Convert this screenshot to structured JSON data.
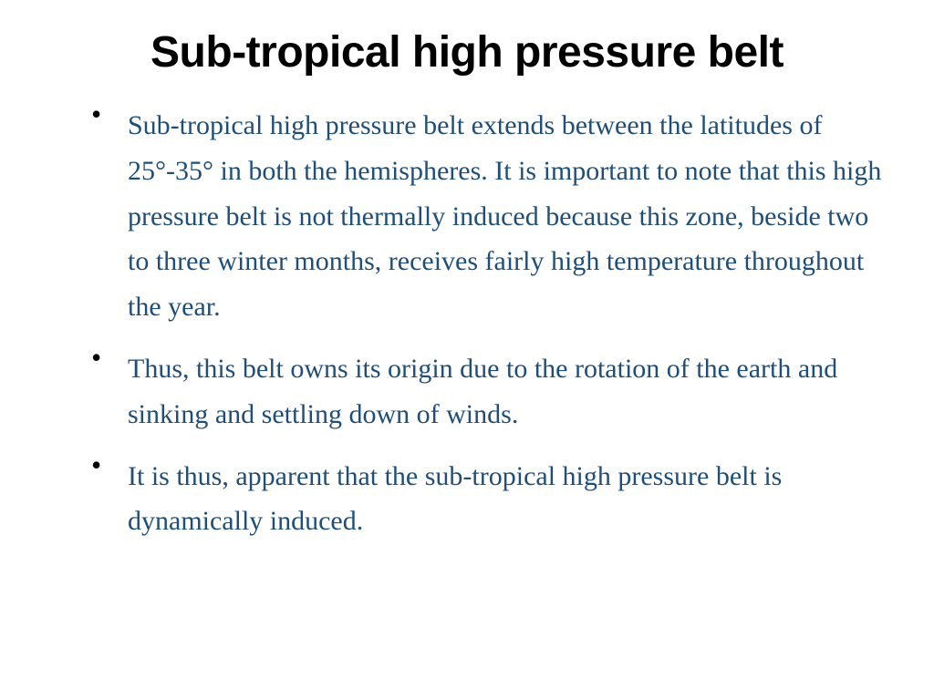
{
  "title": {
    "text": "Sub-tropical high pressure belt",
    "fontsize": 48,
    "color": "#000000"
  },
  "body": {
    "fontsize": 30,
    "line_height": 1.66,
    "color": "#1f4e79",
    "bullet_color": "#000000"
  },
  "bullets": [
    "Sub-tropical high pressure belt extends between the latitudes of 25°-35° in both the hemispheres. It is important to note that this high pressure belt is not thermally induced because this zone, beside two to three winter months, receives fairly high temperature throughout the year.",
    "Thus, this belt owns its origin due to the rotation of the earth and sinking and settling down of winds.",
    "It is thus, apparent that the sub-tropical high pressure belt is dynamically induced."
  ]
}
